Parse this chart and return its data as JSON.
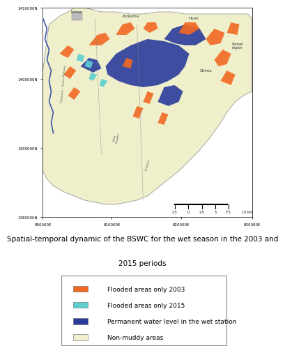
{
  "title_line1": "Spatial-temporal dynamic of the BSWC for the wet season in the 2003 and",
  "title_line2": "2015 periods",
  "title_fontsize": 7.5,
  "legend_items": [
    {
      "label": "Flooded areas only 2003",
      "color": "#F26922"
    },
    {
      "label": "Flooded areas only 2015",
      "color": "#5ECFCF"
    },
    {
      "label": "Permanent water level in the wet station",
      "color": "#2B3B9B"
    },
    {
      "label": "Non-muddy areas",
      "color": "#EFEFCC"
    }
  ],
  "map_bg": "#EFEFCC",
  "border_color": "#2B2B2B",
  "river_color": "#3B5BA5",
  "figure_bg": "#FFFFFF",
  "tick_fontsize": 4,
  "legend_fontsize": 6.5,
  "x_ticks": [
    "800000E",
    "810000E",
    "820000E",
    "830000E"
  ],
  "y_ticks": [
    "1380000N",
    "1390000N",
    "1400000N",
    "1410000N"
  ],
  "orange_color": "#F26922",
  "cyan_color": "#5ECFCF",
  "blue_color": "#2B3B9B",
  "yellow_color": "#EFEFCC",
  "label_fontsize": 4,
  "road_fontsize": 3,
  "scale_fontsize": 3.5
}
